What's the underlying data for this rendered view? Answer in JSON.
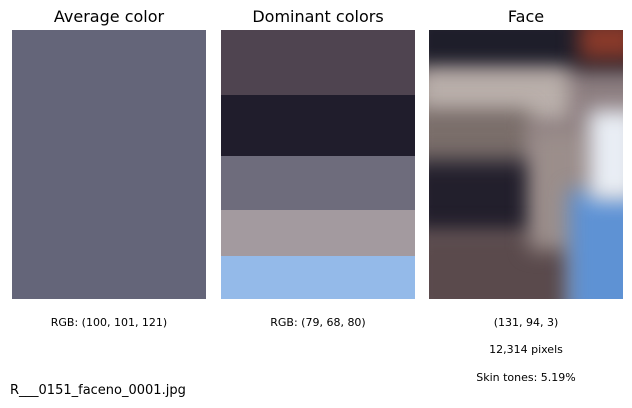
{
  "panels": {
    "average": {
      "title": "Average color",
      "rgb_text": "RGB: (100, 101, 121)",
      "color": "#646579"
    },
    "dominant": {
      "title": "Dominant colors",
      "rgb_text": "RGB: (79, 68, 80)",
      "bands": [
        {
          "color": "#4f4450",
          "share": 0.24
        },
        {
          "color": "#201d2c",
          "share": 0.23
        },
        {
          "color": "#6e6c7c",
          "share": 0.2
        },
        {
          "color": "#a39a9f",
          "share": 0.17
        },
        {
          "color": "#94bae9",
          "share": 0.16
        }
      ]
    },
    "face": {
      "title": "Face",
      "rgb_text": "(131, 94, 3)",
      "pixels_text": "12,314 pixels",
      "skin_text": "Skin tones: 5.19%"
    }
  },
  "filename": "R___0151_faceno_0001.jpg"
}
